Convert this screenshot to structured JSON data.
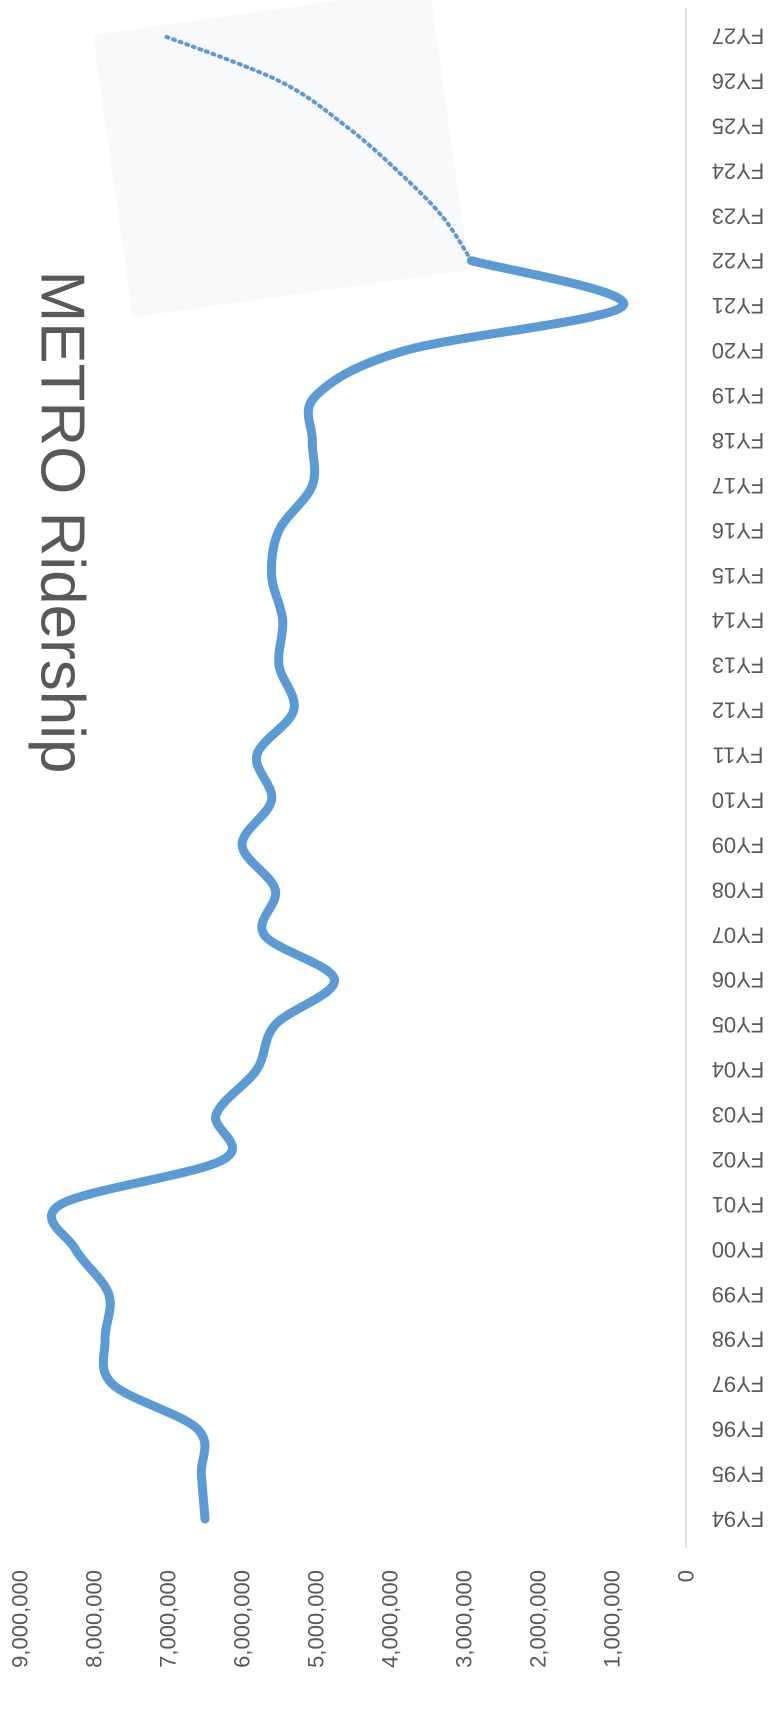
{
  "chart_data": {
    "type": "line",
    "title": "METRO Ridership",
    "xlabel": "",
    "ylabel": "",
    "categories": [
      "FY94",
      "FY95",
      "FY96",
      "FY97",
      "FY98",
      "FY99",
      "FY00",
      "FY01",
      "FY02",
      "FY03",
      "FY04",
      "FY05",
      "FY06",
      "FY07",
      "FY08",
      "FY09",
      "FY10",
      "FY11",
      "FY12",
      "FY13",
      "FY14",
      "FY15",
      "FY16",
      "FY17",
      "FY18",
      "FY19",
      "FY20",
      "FY21",
      "FY22",
      "FY23",
      "FY24",
      "FY25",
      "FY26",
      "FY27"
    ],
    "series": [
      {
        "style": "solid",
        "color": "#5b9bd5",
        "values": [
          6500000,
          6550000,
          6600000,
          7750000,
          7850000,
          7800000,
          8250000,
          8450000,
          6250000,
          6350000,
          5800000,
          5550000,
          4750000,
          5700000,
          5550000,
          6000000,
          5600000,
          5800000,
          5300000,
          5500000,
          5450000,
          5600000,
          5500000,
          5050000,
          5050000,
          5000000,
          3800000,
          850000,
          2900000,
          null,
          null,
          null,
          null,
          null
        ]
      },
      {
        "style": "dotted",
        "color": "#5b9bd5",
        "values": [
          null,
          null,
          null,
          null,
          null,
          null,
          null,
          null,
          null,
          null,
          null,
          null,
          null,
          null,
          null,
          null,
          null,
          null,
          null,
          null,
          null,
          null,
          null,
          null,
          null,
          null,
          null,
          null,
          2900000,
          3300000,
          3900000,
          4600000,
          5500000,
          7050000
        ]
      }
    ],
    "ylim": [
      0,
      9000000
    ],
    "y_ticks": [
      "0",
      "1,000,000",
      "2,000,000",
      "3,000,000",
      "4,000,000",
      "5,000,000",
      "6,000,000",
      "7,000,000",
      "8,000,000",
      "9,000,000"
    ],
    "orientation": "rotated-90-clockwise",
    "grid": false,
    "legend": "none"
  }
}
